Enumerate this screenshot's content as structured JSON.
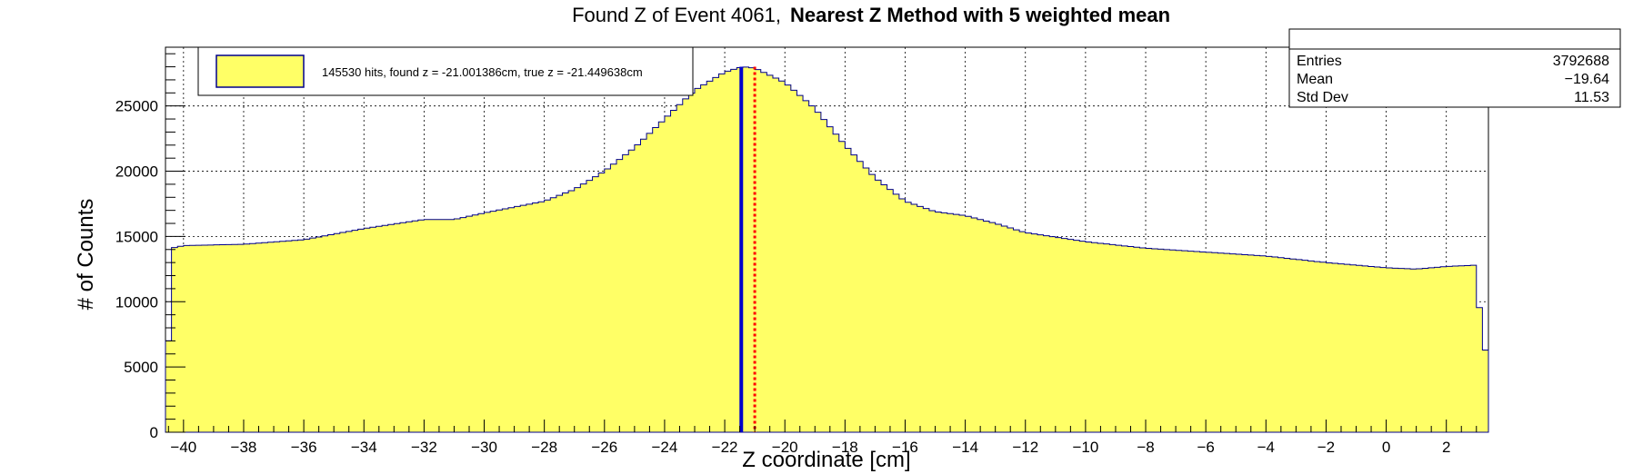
{
  "chart_data": {
    "type": "histogram",
    "title_normal": "Found Z of Event 4061,",
    "title_bold": "Nearest Z Method with 5 weighted mean",
    "xlabel": "Z coordinate [cm]",
    "ylabel": "# of Counts",
    "xlim": [
      -40.6,
      3.4
    ],
    "ylim": [
      0,
      29500
    ],
    "x_ticks": [
      -40,
      -38,
      -36,
      -34,
      -32,
      -30,
      -28,
      -26,
      -24,
      -22,
      -20,
      -18,
      -16,
      -14,
      -12,
      -10,
      -8,
      -6,
      -4,
      -2,
      0,
      2
    ],
    "y_ticks": [
      0,
      5000,
      10000,
      15000,
      20000,
      25000
    ],
    "grid": true,
    "legend": {
      "entry": "145530 hits, found z = -21.001386cm, true z = -21.449638cm",
      "placement": "top-left"
    },
    "stats": {
      "placement": "top-right",
      "rows": [
        {
          "label": "Entries",
          "value": "3792688"
        },
        {
          "label": "Mean",
          "value": "−19.64"
        },
        {
          "label": "Std Dev",
          "value": "11.53"
        }
      ]
    },
    "lines": [
      {
        "kind": "true-z",
        "x": -21.449638,
        "color": "#0000cc",
        "style": "solid"
      },
      {
        "kind": "found-z",
        "x": -21.001386,
        "color": "#ff0000",
        "style": "dotted"
      }
    ],
    "colors": {
      "fill": "#ffff66",
      "outline": "#00008b"
    },
    "bin_width": 0.2,
    "histogram_points": [
      [
        -40.6,
        7000
      ],
      [
        -40.4,
        14100
      ],
      [
        -40.0,
        14300
      ],
      [
        -38.0,
        14400
      ],
      [
        -36.0,
        14750
      ],
      [
        -34.0,
        15600
      ],
      [
        -32.0,
        16300
      ],
      [
        -31.0,
        16300
      ],
      [
        -30.0,
        16800
      ],
      [
        -28.0,
        17700
      ],
      [
        -27.0,
        18600
      ],
      [
        -26.0,
        20000
      ],
      [
        -25.0,
        21800
      ],
      [
        -24.0,
        24000
      ],
      [
        -23.0,
        26200
      ],
      [
        -22.0,
        27600
      ],
      [
        -21.4,
        28000
      ],
      [
        -21.0,
        27900
      ],
      [
        -20.0,
        26800
      ],
      [
        -19.0,
        24800
      ],
      [
        -18.0,
        22000
      ],
      [
        -17.0,
        19500
      ],
      [
        -16.0,
        17700
      ],
      [
        -15.0,
        16900
      ],
      [
        -14.0,
        16600
      ],
      [
        -13.0,
        16000
      ],
      [
        -12.0,
        15300
      ],
      [
        -10.0,
        14600
      ],
      [
        -8.0,
        14100
      ],
      [
        -6.0,
        13800
      ],
      [
        -4.0,
        13500
      ],
      [
        -2.0,
        13000
      ],
      [
        0.0,
        12600
      ],
      [
        1.0,
        12500
      ],
      [
        2.0,
        12700
      ],
      [
        3.0,
        12800
      ],
      [
        3.2,
        6300
      ]
    ]
  }
}
